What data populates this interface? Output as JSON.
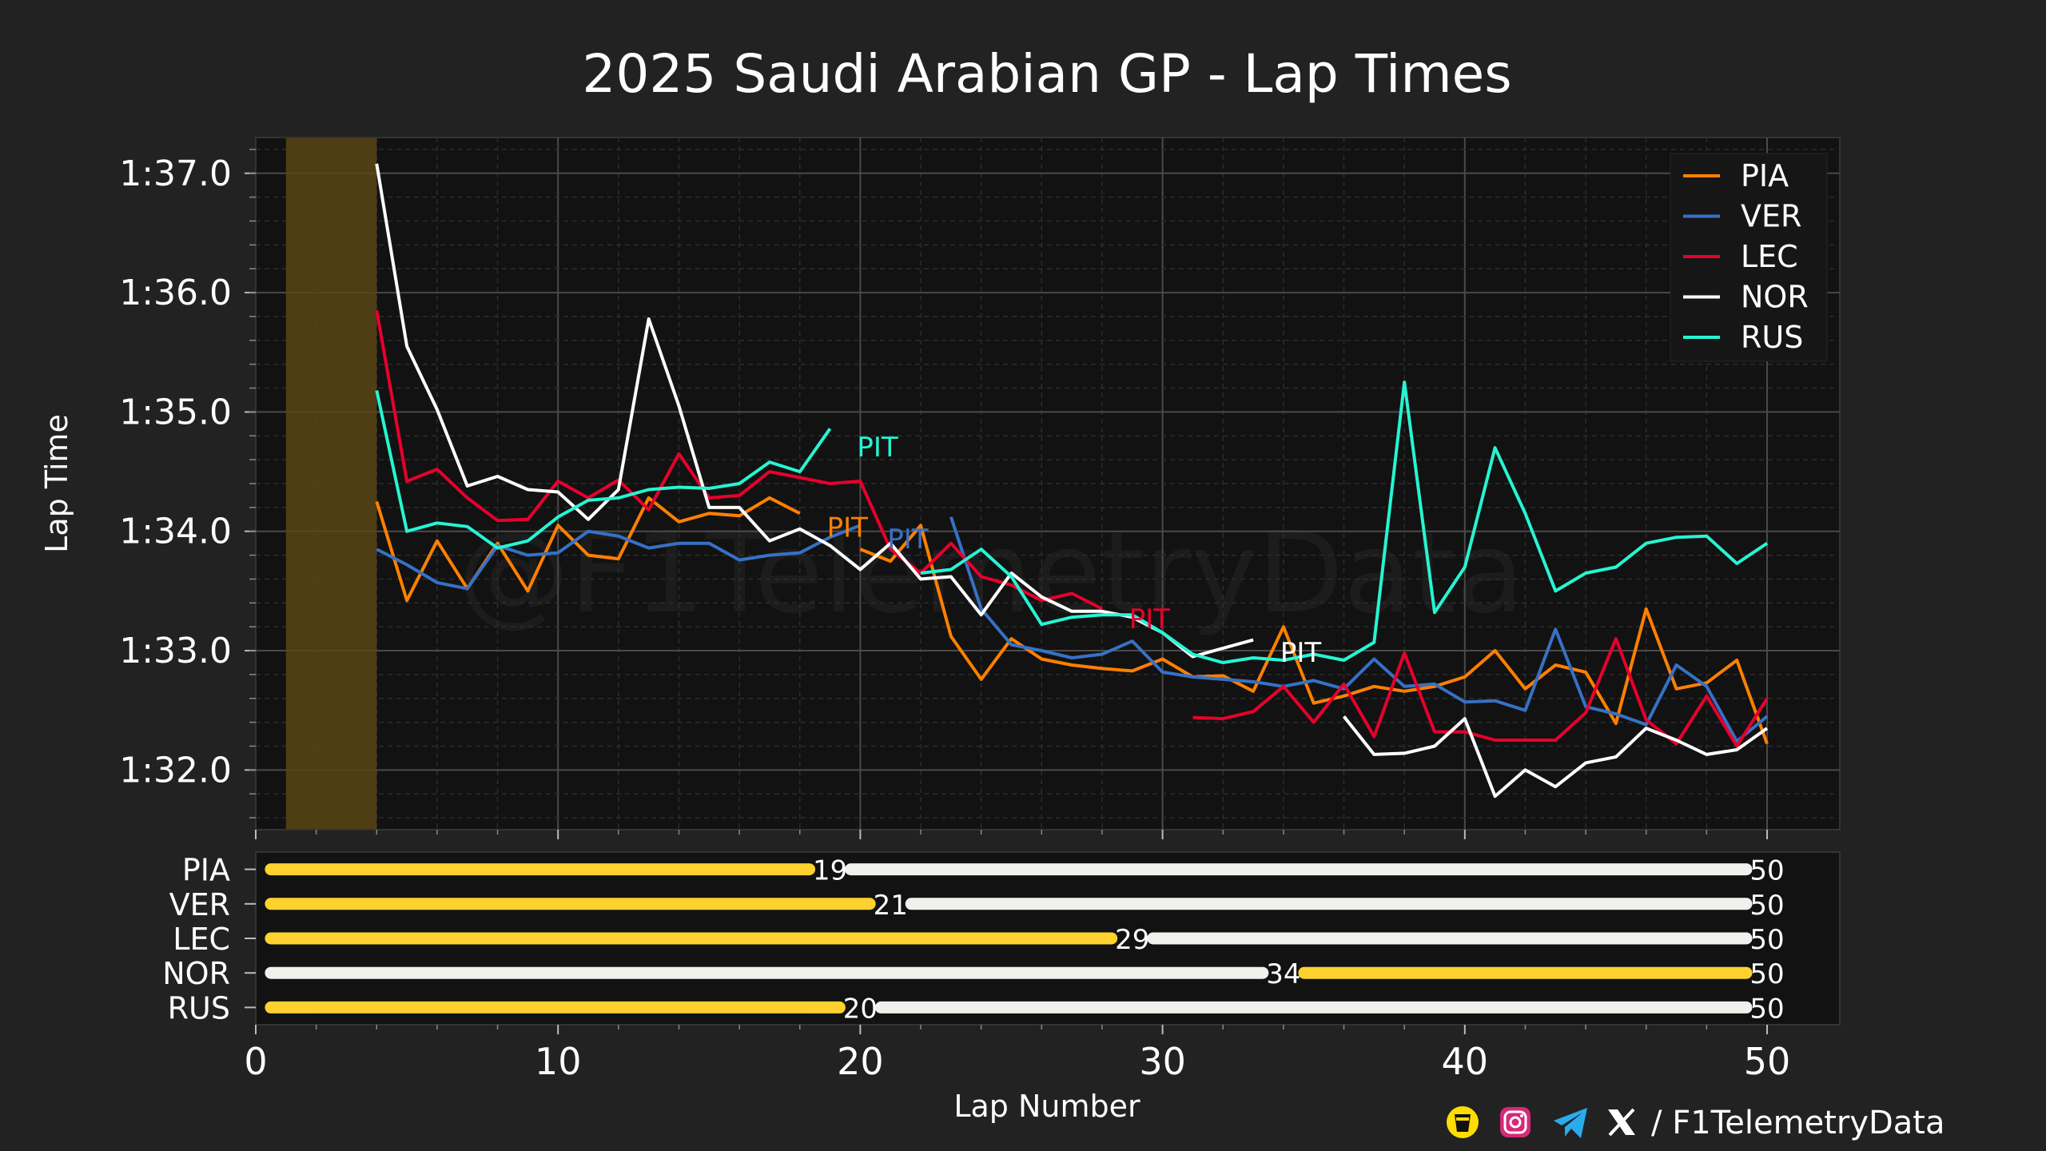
{
  "chart_data": {
    "type": "line",
    "title": "2025 Saudi Arabian GP - Lap Times",
    "xlabel": "Lap Number",
    "ylabel": "Lap Time",
    "xlim": [
      0,
      52.5
    ],
    "ylim": [
      91.5,
      97.3
    ],
    "xticks": [
      0,
      10,
      20,
      30,
      40,
      50
    ],
    "yticks": [
      {
        "value": 92,
        "label": "1:32.0"
      },
      {
        "value": 93,
        "label": "1:33.0"
      },
      {
        "value": 94,
        "label": "1:34.0"
      },
      {
        "value": 95,
        "label": "1:35.0"
      },
      {
        "value": 96,
        "label": "1:36.0"
      },
      {
        "value": 97,
        "label": "1:37.0"
      }
    ],
    "grid": true,
    "legend_position": "top-right",
    "safety_car_band": {
      "start_lap": 1,
      "end_lap": 4,
      "color": "#5a4515"
    },
    "watermark": "@F1TelemetryData",
    "series": [
      {
        "name": "PIA",
        "color": "#ff8000",
        "segments": [
          {
            "x": [
              4,
              5,
              6,
              7,
              8,
              9,
              10,
              11,
              12,
              13,
              14,
              15,
              16,
              17,
              18
            ],
            "y": [
              94.25,
              93.42,
              93.92,
              93.52,
              93.9,
              93.5,
              94.05,
              93.8,
              93.77,
              94.28,
              94.08,
              94.15,
              94.13,
              94.28,
              94.15
            ]
          },
          {
            "x": [
              20,
              21,
              22,
              23,
              24,
              25,
              26,
              27,
              28,
              29,
              30,
              31,
              32,
              33,
              34,
              35,
              36,
              37,
              38,
              39,
              40,
              41,
              42,
              43,
              44,
              45,
              46,
              47,
              48,
              49,
              50
            ],
            "y": [
              93.85,
              93.75,
              94.05,
              93.12,
              92.76,
              93.1,
              92.93,
              92.88,
              92.85,
              92.83,
              92.93,
              92.78,
              92.79,
              92.66,
              93.2,
              92.56,
              92.62,
              92.7,
              92.66,
              92.7,
              92.78,
              93.0,
              92.68,
              92.88,
              92.82,
              92.39,
              93.35,
              92.68,
              92.73,
              92.92,
              92.22
            ]
          }
        ]
      },
      {
        "name": "VER",
        "color": "#3671c6",
        "segments": [
          {
            "x": [
              4,
              5,
              6,
              7,
              8,
              9,
              10,
              11,
              12,
              13,
              14,
              15,
              16,
              17,
              18,
              19,
              20
            ],
            "y": [
              93.85,
              93.72,
              93.57,
              93.52,
              93.88,
              93.8,
              93.82,
              94.0,
              93.96,
              93.86,
              93.9,
              93.9,
              93.76,
              93.8,
              93.82,
              93.95,
              94.05
            ]
          },
          {
            "x": [
              23,
              24,
              25,
              26,
              27,
              28,
              29,
              30,
              31,
              32,
              33,
              34,
              35,
              36,
              37,
              38,
              39,
              40,
              41,
              42,
              43,
              44,
              45,
              46,
              47,
              48,
              49,
              50
            ],
            "y": [
              94.12,
              93.35,
              93.05,
              93.0,
              92.94,
              92.97,
              93.08,
              92.82,
              92.78,
              92.76,
              92.74,
              92.7,
              92.75,
              92.68,
              92.93,
              92.7,
              92.72,
              92.57,
              92.58,
              92.5,
              93.18,
              92.53,
              92.47,
              92.38,
              92.88,
              92.7,
              92.24,
              92.45
            ]
          }
        ]
      },
      {
        "name": "LEC",
        "color": "#e8002d",
        "segments": [
          {
            "x": [
              4,
              5,
              6,
              7,
              8,
              9,
              10,
              11,
              12,
              13,
              14,
              15,
              16,
              17,
              18,
              19,
              20,
              21,
              22,
              23,
              24,
              25,
              26,
              27,
              28
            ],
            "y": [
              95.85,
              94.42,
              94.52,
              94.28,
              94.09,
              94.1,
              94.42,
              94.28,
              94.43,
              94.18,
              94.65,
              94.28,
              94.3,
              94.5,
              94.45,
              94.4,
              94.42,
              93.85,
              93.65,
              93.9,
              93.62,
              93.55,
              93.42,
              93.48,
              93.35
            ]
          },
          {
            "x": [
              31,
              32,
              33,
              34,
              35,
              36,
              37,
              38,
              39,
              40,
              41,
              42,
              43,
              44,
              45,
              46,
              47,
              48,
              49,
              50
            ],
            "y": [
              92.44,
              92.43,
              92.49,
              92.7,
              92.4,
              92.72,
              92.28,
              92.98,
              92.32,
              92.32,
              92.25,
              92.25,
              92.25,
              92.48,
              93.1,
              92.42,
              92.22,
              92.62,
              92.2,
              92.6
            ]
          }
        ]
      },
      {
        "name": "NOR",
        "color": "#ffffff",
        "segments": [
          {
            "x": [
              4,
              5,
              6,
              7,
              8,
              9,
              10,
              11,
              12,
              13,
              14,
              15,
              16,
              17,
              18,
              19,
              20,
              21,
              22,
              23,
              24,
              25,
              26,
              27,
              28,
              29,
              30,
              31,
              32,
              33
            ],
            "y": [
              97.08,
              95.55,
              95.02,
              94.38,
              94.46,
              94.35,
              94.33,
              94.1,
              94.35,
              95.78,
              95.05,
              94.2,
              94.2,
              93.92,
              94.02,
              93.88,
              93.68,
              93.9,
              93.6,
              93.62,
              93.3,
              93.65,
              93.45,
              93.33,
              93.33,
              93.28,
              93.15,
              92.95,
              93.02,
              93.09
            ]
          },
          {
            "x": [
              36,
              37,
              38,
              39,
              40,
              41,
              42,
              43,
              44,
              45,
              46,
              47,
              48,
              49,
              50
            ],
            "y": [
              92.45,
              92.13,
              92.14,
              92.2,
              92.43,
              91.78,
              92.0,
              91.86,
              92.06,
              92.11,
              92.35,
              92.25,
              92.13,
              92.17,
              92.35
            ]
          }
        ]
      },
      {
        "name": "RUS",
        "color": "#27f4d2",
        "segments": [
          {
            "x": [
              4,
              5,
              6,
              7,
              8,
              9,
              10,
              11,
              12,
              13,
              14,
              15,
              16,
              17,
              18,
              19
            ],
            "y": [
              95.18,
              94.0,
              94.07,
              94.04,
              93.86,
              93.92,
              94.12,
              94.26,
              94.28,
              94.35,
              94.37,
              94.36,
              94.4,
              94.58,
              94.5,
              94.86
            ]
          },
          {
            "x": [
              22,
              23,
              24,
              25,
              26,
              27,
              28,
              29,
              30,
              31,
              32,
              33,
              34,
              35,
              36,
              37,
              38,
              39,
              40,
              41,
              42,
              43,
              44,
              45,
              46,
              47,
              48,
              49,
              50
            ],
            "y": [
              93.65,
              93.68,
              93.85,
              93.62,
              93.22,
              93.28,
              93.3,
              93.3,
              93.15,
              92.97,
              92.9,
              92.94,
              92.92,
              92.97,
              92.92,
              93.07,
              95.25,
              93.32,
              93.7,
              94.7,
              94.15,
              93.5,
              93.65,
              93.7,
              93.9,
              93.95,
              93.96,
              93.73,
              93.9
            ]
          }
        ]
      }
    ],
    "pit_annotations": [
      {
        "driver": "RUS",
        "text": "PIT",
        "lap": 20,
        "time": 94.72
      },
      {
        "driver": "PIA",
        "text": "PIT",
        "lap": 19,
        "time": 94.05
      },
      {
        "driver": "VER",
        "text": "PIT",
        "lap": 21,
        "time": 93.95
      },
      {
        "driver": "LEC",
        "text": "PIT",
        "lap": 29,
        "time": 93.28
      },
      {
        "driver": "NOR",
        "text": "PIT",
        "lap": 34,
        "time": 93.0
      }
    ],
    "stints": [
      {
        "driver": "PIA",
        "stints": [
          {
            "start": 0.5,
            "end": 19,
            "compound": "medium"
          },
          {
            "start": 19,
            "end": 50,
            "compound": "hard"
          }
        ],
        "labels": [
          "19",
          "50"
        ]
      },
      {
        "driver": "VER",
        "stints": [
          {
            "start": 0.5,
            "end": 21,
            "compound": "medium"
          },
          {
            "start": 21,
            "end": 50,
            "compound": "hard"
          }
        ],
        "labels": [
          "21",
          "50"
        ]
      },
      {
        "driver": "LEC",
        "stints": [
          {
            "start": 0.5,
            "end": 29,
            "compound": "medium"
          },
          {
            "start": 29,
            "end": 50,
            "compound": "hard"
          }
        ],
        "labels": [
          "29",
          "50"
        ]
      },
      {
        "driver": "NOR",
        "stints": [
          {
            "start": 0.5,
            "end": 34,
            "compound": "hard"
          },
          {
            "start": 34,
            "end": 50,
            "compound": "medium"
          }
        ],
        "labels": [
          "34",
          "50"
        ]
      },
      {
        "driver": "RUS",
        "stints": [
          {
            "start": 0.5,
            "end": 20,
            "compound": "medium"
          },
          {
            "start": 20,
            "end": 50,
            "compound": "hard"
          }
        ],
        "labels": [
          "20",
          "50"
        ]
      }
    ],
    "compound_colors": {
      "medium": "#ffd12e",
      "hard": "#f0f0ec"
    }
  },
  "footer": {
    "handle": "/ F1TelemetryData",
    "icons": [
      "buymeacoffee-icon",
      "instagram-icon",
      "telegram-icon",
      "x-icon"
    ]
  }
}
